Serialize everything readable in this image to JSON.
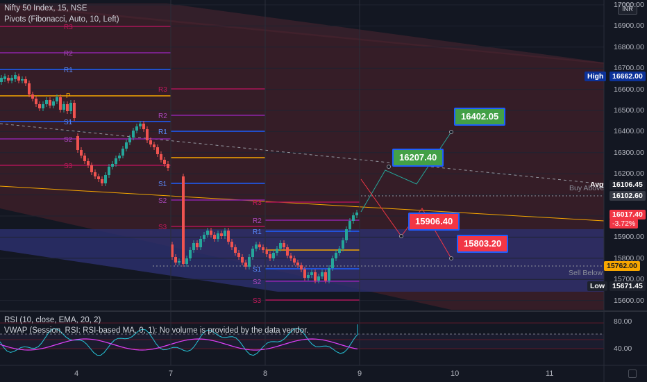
{
  "header": {
    "symbol_line": "Nifty 50 Index, 15, NSE",
    "pivots_line": "Pivots (Fibonacci, Auto, 10, Left)",
    "rsi_line": "RSI (10, close, EMA, 20, 2)",
    "vwap_line": "VWAP (Session, RSI: RSI-based MA, 0, 1): No volume is provided by the data vendor."
  },
  "currency_button": "INR",
  "price_axis": [
    "17000.00",
    "16900.00",
    "16800.00",
    "16700.00",
    "16600.00",
    "16500.00",
    "16400.00",
    "16300.00",
    "16200.00",
    "16100.00",
    "16000.00",
    "15900.00",
    "15800.00",
    "15700.00",
    "15600.00"
  ],
  "rsi_axis": [
    "80.00",
    "40.00"
  ],
  "time_axis": [
    "4",
    "7",
    "8",
    "9",
    "10",
    "11"
  ],
  "price_tags": {
    "high": {
      "label": "High",
      "value": "16662.00"
    },
    "avg": {
      "label": "Avg",
      "value": "16106.45"
    },
    "buy_above": {
      "label": "Buy Above",
      "value": "16102.60"
    },
    "last": {
      "value": "16017.40",
      "change": "-3.72%"
    },
    "sell_below": {
      "label": "Sell Below",
      "value": "15762.00"
    },
    "low": {
      "label": "Low",
      "value": "15671.45"
    }
  },
  "callouts": {
    "target_up_2": "16402.05",
    "target_up_1": "16207.40",
    "target_down_1": "15906.40",
    "target_down_2": "15803.20"
  },
  "pivot_labels": {
    "r3": "R3",
    "r2": "R2",
    "r1": "R1",
    "p": "P",
    "s1": "S1",
    "s2": "S2",
    "s3": "S3"
  },
  "colors": {
    "background": "#131722",
    "bull": "#26a69a",
    "bear": "#ef5350",
    "upper_channel": "#3a1e28",
    "lower_channel": "#2b2f6b",
    "green_tag": "#43a047",
    "red_tag": "#f23645",
    "navy_tag": "#0c3299"
  }
}
